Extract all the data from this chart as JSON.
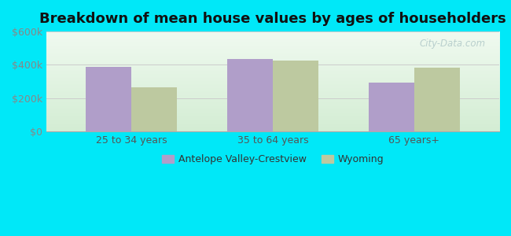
{
  "title": "Breakdown of mean house values by ages of householders",
  "categories": [
    "25 to 34 years",
    "35 to 64 years",
    "65 years+"
  ],
  "antelope_values": [
    390000,
    435000,
    295000
  ],
  "wyoming_values": [
    265000,
    425000,
    385000
  ],
  "antelope_color": "#b09ec9",
  "wyoming_color": "#bdc9a0",
  "ylim": [
    0,
    600000
  ],
  "yticks": [
    0,
    200000,
    400000,
    600000
  ],
  "ytick_labels": [
    "$0",
    "$200k",
    "$400k",
    "$600k"
  ],
  "background_outer": "#00e8f8",
  "legend_label_1": "Antelope Valley-Crestview",
  "legend_label_2": "Wyoming",
  "bar_width": 0.32,
  "title_fontsize": 13,
  "watermark": "City-Data.com",
  "grad_top": "#f0faf0",
  "grad_bottom": "#d4edd4"
}
